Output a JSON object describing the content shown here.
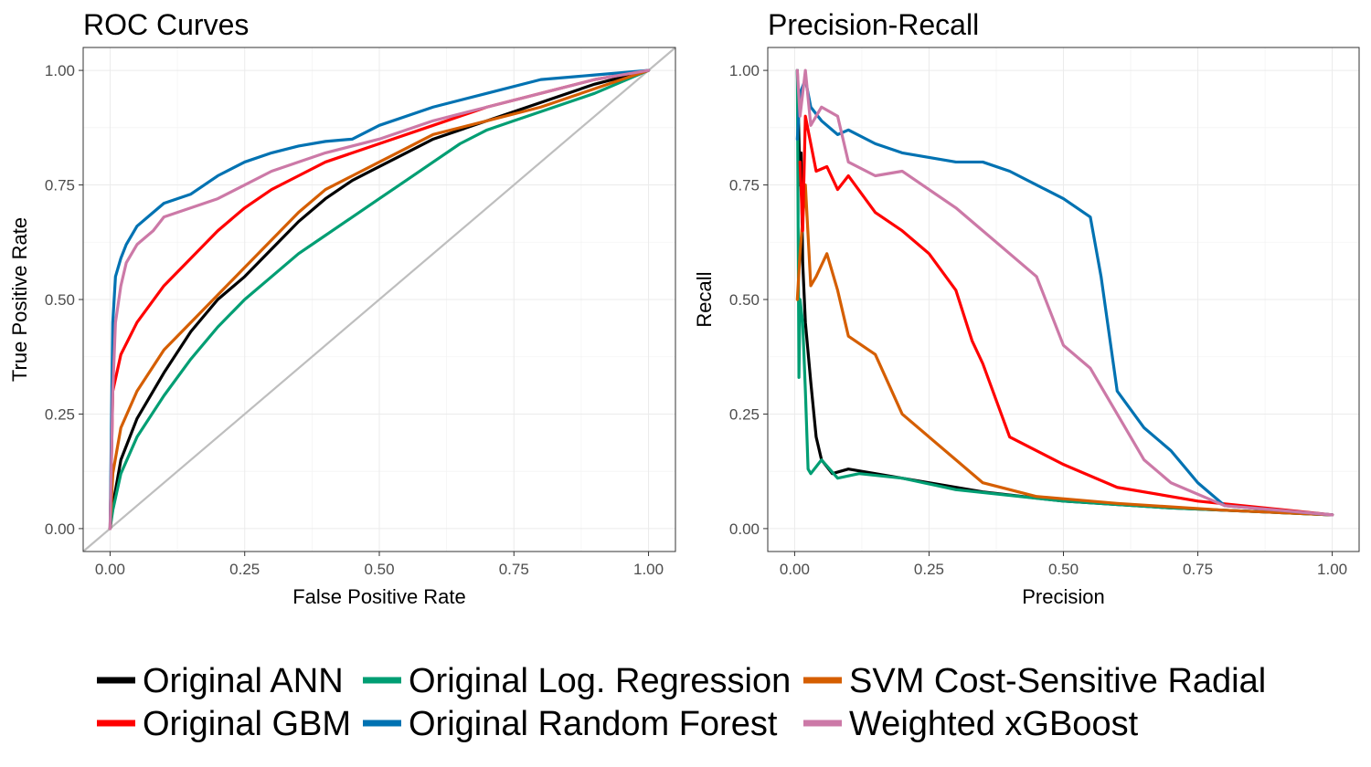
{
  "colors": {
    "Original ANN": "#000000",
    "Original Log. Regression": "#009E73",
    "SVM Cost-Sensitive Radial": "#D55E00",
    "Original GBM": "#FF0000",
    "Original Random Forest": "#0072B2",
    "Weighted xGBoost": "#CC79A7",
    "diagonal": "#BEBEBE"
  },
  "legend": {
    "items": [
      {
        "label": "Original ANN",
        "color": "#000000"
      },
      {
        "label": "Original Log. Regression",
        "color": "#009E73"
      },
      {
        "label": "SVM Cost-Sensitive Radial",
        "color": "#D55E00"
      },
      {
        "label": "Original GBM",
        "color": "#FF0000"
      },
      {
        "label": "Original Random Forest",
        "color": "#0072B2"
      },
      {
        "label": "Weighted xGBoost",
        "color": "#CC79A7"
      }
    ]
  },
  "chart_data": [
    {
      "type": "line",
      "title": "ROC Curves",
      "xlabel": "False Positive Rate",
      "ylabel": "True Positive Rate",
      "xlim": [
        0,
        1
      ],
      "ylim": [
        0,
        1
      ],
      "xticks": [
        "0.00",
        "0.25",
        "0.50",
        "0.75",
        "1.00"
      ],
      "yticks": [
        "0.00",
        "0.25",
        "0.50",
        "0.75",
        "1.00"
      ],
      "grid": true,
      "reference_line": {
        "x": [
          0,
          1
        ],
        "y": [
          0,
          1
        ],
        "color": "#BEBEBE"
      },
      "series": [
        {
          "name": "Original ANN",
          "x": [
            0,
            0.005,
            0.02,
            0.05,
            0.1,
            0.15,
            0.2,
            0.25,
            0.3,
            0.35,
            0.4,
            0.45,
            0.5,
            0.55,
            0.6,
            0.7,
            0.8,
            0.9,
            1.0
          ],
          "y": [
            0,
            0.05,
            0.15,
            0.24,
            0.34,
            0.43,
            0.5,
            0.55,
            0.61,
            0.67,
            0.72,
            0.76,
            0.79,
            0.82,
            0.85,
            0.89,
            0.93,
            0.97,
            1.0
          ]
        },
        {
          "name": "Original Log. Regression",
          "x": [
            0,
            0.005,
            0.02,
            0.05,
            0.1,
            0.15,
            0.2,
            0.25,
            0.3,
            0.35,
            0.4,
            0.45,
            0.5,
            0.55,
            0.6,
            0.65,
            0.7,
            0.75,
            0.8,
            0.9,
            1.0
          ],
          "y": [
            0,
            0.04,
            0.12,
            0.2,
            0.29,
            0.37,
            0.44,
            0.5,
            0.55,
            0.6,
            0.64,
            0.68,
            0.72,
            0.76,
            0.8,
            0.84,
            0.87,
            0.89,
            0.91,
            0.95,
            1.0
          ]
        },
        {
          "name": "SVM Cost-Sensitive Radial",
          "x": [
            0,
            0.005,
            0.02,
            0.05,
            0.1,
            0.15,
            0.2,
            0.25,
            0.3,
            0.35,
            0.4,
            0.45,
            0.5,
            0.55,
            0.6,
            0.7,
            0.8,
            0.9,
            1.0
          ],
          "y": [
            0,
            0.12,
            0.22,
            0.3,
            0.39,
            0.45,
            0.51,
            0.57,
            0.63,
            0.69,
            0.74,
            0.77,
            0.8,
            0.83,
            0.86,
            0.89,
            0.92,
            0.96,
            1.0
          ]
        },
        {
          "name": "Original GBM",
          "x": [
            0,
            0.005,
            0.02,
            0.05,
            0.1,
            0.15,
            0.2,
            0.25,
            0.3,
            0.35,
            0.4,
            0.5,
            0.6,
            0.7,
            0.8,
            0.9,
            1.0
          ],
          "y": [
            0,
            0.3,
            0.38,
            0.45,
            0.53,
            0.59,
            0.65,
            0.7,
            0.74,
            0.77,
            0.8,
            0.84,
            0.88,
            0.92,
            0.95,
            0.98,
            1.0
          ]
        },
        {
          "name": "Original Random Forest",
          "x": [
            0,
            0.005,
            0.01,
            0.02,
            0.03,
            0.05,
            0.08,
            0.1,
            0.15,
            0.2,
            0.25,
            0.3,
            0.35,
            0.4,
            0.45,
            0.5,
            0.6,
            0.7,
            0.8,
            0.9,
            1.0
          ],
          "y": [
            0,
            0.45,
            0.55,
            0.59,
            0.62,
            0.66,
            0.69,
            0.71,
            0.73,
            0.77,
            0.8,
            0.82,
            0.835,
            0.845,
            0.85,
            0.88,
            0.92,
            0.95,
            0.98,
            0.99,
            1.0
          ]
        },
        {
          "name": "Weighted xGBoost",
          "x": [
            0,
            0.005,
            0.01,
            0.02,
            0.03,
            0.05,
            0.08,
            0.1,
            0.15,
            0.2,
            0.25,
            0.3,
            0.4,
            0.5,
            0.6,
            0.7,
            0.8,
            0.9,
            1.0
          ],
          "y": [
            0,
            0.3,
            0.45,
            0.53,
            0.58,
            0.62,
            0.65,
            0.68,
            0.7,
            0.72,
            0.75,
            0.78,
            0.82,
            0.85,
            0.89,
            0.92,
            0.95,
            0.98,
            1.0
          ]
        }
      ]
    },
    {
      "type": "line",
      "title": "Precision-Recall",
      "xlabel": "Precision",
      "ylabel": "Recall",
      "xlim": [
        0,
        1
      ],
      "ylim": [
        0,
        1
      ],
      "xticks": [
        "0.00",
        "0.25",
        "0.50",
        "0.75",
        "1.00"
      ],
      "yticks": [
        "0.00",
        "0.25",
        "0.50",
        "0.75",
        "1.00"
      ],
      "grid": true,
      "series": [
        {
          "name": "Original ANN",
          "x": [
            0.005,
            0.01,
            0.012,
            0.015,
            0.02,
            0.03,
            0.04,
            0.05,
            0.07,
            0.1,
            0.15,
            0.25,
            0.35,
            0.5,
            0.7,
            1.0
          ],
          "y": [
            1.0,
            0.75,
            0.82,
            0.58,
            0.45,
            0.32,
            0.2,
            0.15,
            0.12,
            0.13,
            0.12,
            0.1,
            0.08,
            0.06,
            0.045,
            0.03
          ]
        },
        {
          "name": "Original Log. Regression",
          "x": [
            0.005,
            0.008,
            0.01,
            0.015,
            0.02,
            0.025,
            0.03,
            0.05,
            0.08,
            0.12,
            0.2,
            0.3,
            0.5,
            0.7,
            1.0
          ],
          "y": [
            1.0,
            0.33,
            0.5,
            0.45,
            0.3,
            0.13,
            0.12,
            0.15,
            0.11,
            0.12,
            0.11,
            0.085,
            0.06,
            0.045,
            0.03
          ]
        },
        {
          "name": "SVM Cost-Sensitive Radial",
          "x": [
            0.005,
            0.01,
            0.02,
            0.03,
            0.04,
            0.06,
            0.08,
            0.1,
            0.15,
            0.2,
            0.25,
            0.3,
            0.35,
            0.45,
            0.6,
            0.8,
            1.0
          ],
          "y": [
            0.5,
            0.6,
            0.75,
            0.53,
            0.55,
            0.6,
            0.52,
            0.42,
            0.38,
            0.25,
            0.2,
            0.15,
            0.1,
            0.07,
            0.055,
            0.04,
            0.03
          ]
        },
        {
          "name": "Original GBM",
          "x": [
            0.01,
            0.015,
            0.02,
            0.04,
            0.06,
            0.08,
            0.1,
            0.15,
            0.2,
            0.25,
            0.3,
            0.33,
            0.35,
            0.4,
            0.5,
            0.6,
            0.75,
            1.0
          ],
          "y": [
            0.8,
            0.65,
            0.9,
            0.78,
            0.79,
            0.74,
            0.77,
            0.69,
            0.65,
            0.6,
            0.52,
            0.41,
            0.36,
            0.2,
            0.14,
            0.09,
            0.06,
            0.03
          ]
        },
        {
          "name": "Original Random Forest",
          "x": [
            0.005,
            0.01,
            0.02,
            0.03,
            0.05,
            0.08,
            0.1,
            0.15,
            0.2,
            0.25,
            0.3,
            0.35,
            0.4,
            0.45,
            0.5,
            0.55,
            0.57,
            0.6,
            0.65,
            0.7,
            0.75,
            0.8,
            1.0
          ],
          "y": [
            0.85,
            0.95,
            0.98,
            0.92,
            0.89,
            0.86,
            0.87,
            0.84,
            0.82,
            0.81,
            0.8,
            0.8,
            0.78,
            0.75,
            0.72,
            0.68,
            0.55,
            0.3,
            0.22,
            0.17,
            0.1,
            0.05,
            0.03
          ]
        },
        {
          "name": "Weighted xGBoost",
          "x": [
            0.005,
            0.01,
            0.02,
            0.03,
            0.05,
            0.08,
            0.1,
            0.15,
            0.2,
            0.25,
            0.3,
            0.35,
            0.4,
            0.45,
            0.5,
            0.55,
            0.6,
            0.65,
            0.7,
            0.8,
            1.0
          ],
          "y": [
            1.0,
            0.9,
            1.0,
            0.88,
            0.92,
            0.9,
            0.8,
            0.77,
            0.78,
            0.74,
            0.7,
            0.65,
            0.6,
            0.55,
            0.4,
            0.35,
            0.25,
            0.15,
            0.1,
            0.05,
            0.03
          ]
        }
      ]
    }
  ]
}
